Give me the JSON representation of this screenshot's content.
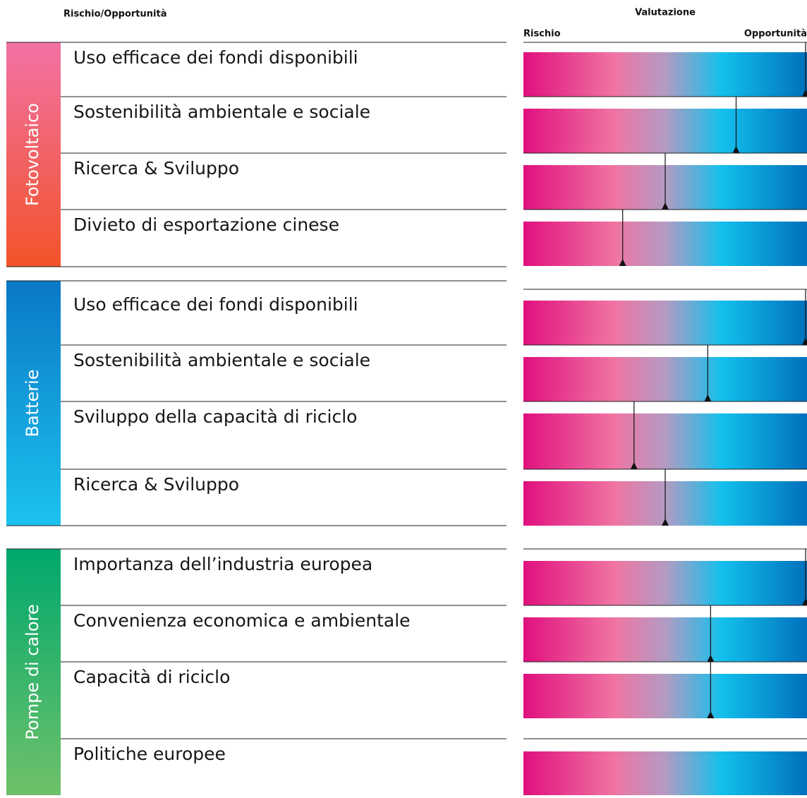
{
  "chart_data": {
    "type": "rating",
    "header_left": "Rischio/Opportunità",
    "header_right": "Valutazione",
    "scale_left": "Rischio",
    "scale_right": "Opportunità",
    "xlim": [
      0,
      100
    ],
    "groups": [
      {
        "name": "Fotovoltaico",
        "items": [
          {
            "label": "Uso efficace dei fondi disponibili",
            "value": 100
          },
          {
            "label": "Sostenibilità ambientale e sociale",
            "value": 75
          },
          {
            "label": "Ricerca & Sviluppo",
            "value": 50
          },
          {
            "label": "Divieto di esportazione cinese",
            "value": 35
          }
        ]
      },
      {
        "name": "Batterie",
        "items": [
          {
            "label": "Uso efficace dei fondi disponibili",
            "value": 100
          },
          {
            "label": "Sostenibilità ambientale e sociale",
            "value": 65
          },
          {
            "label": "Sviluppo della capacità di riciclo",
            "value": 39
          },
          {
            "label": "Ricerca & Sviluppo",
            "value": 50
          }
        ]
      },
      {
        "name": "Pompe di calore",
        "items": [
          {
            "label": "Importanza dell’industria europea",
            "value": 100
          },
          {
            "label": "Convenienza economica e ambientale",
            "value": 66
          },
          {
            "label": "Capacità di riciclo",
            "value": 66
          },
          {
            "label": "Politiche europee",
            "value": null
          }
        ]
      }
    ]
  }
}
